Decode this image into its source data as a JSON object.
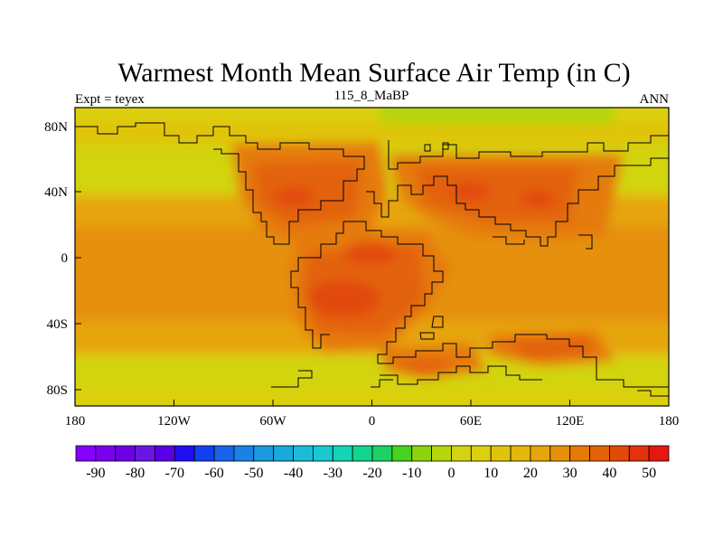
{
  "title": "Warmest Month Mean Surface Air Temp (in C)",
  "subtitle_left": "Expt = teyex",
  "subtitle_center": "115_8_MaBP",
  "subtitle_right": "ANN",
  "axes": {
    "lon_ticks": [
      "180",
      "120W",
      "60W",
      "0",
      "60E",
      "120E",
      "180"
    ],
    "lat_ticks": [
      "80N",
      "40N",
      "0",
      "40S",
      "80S"
    ]
  },
  "colorbar": {
    "colors": [
      "#8500ff",
      "#7c00f0",
      "#6f00e6",
      "#6a16e0",
      "#5a00e6",
      "#2010f0",
      "#1040f0",
      "#1a63ea",
      "#1a82e6",
      "#1b9ae0",
      "#19aadd",
      "#1abcd8",
      "#19c8d0",
      "#14d4b6",
      "#12d68c",
      "#1ed164",
      "#46d21e",
      "#8cd40f",
      "#b4d60d",
      "#d2d411",
      "#dcd00e",
      "#e0c40c",
      "#e3b80b",
      "#e6a50a",
      "#e69009",
      "#e57a08",
      "#e36208",
      "#e24a0a",
      "#e4320b",
      "#e5170f"
    ],
    "labels": [
      "-90",
      "-80",
      "-70",
      "-60",
      "-50",
      "-40",
      "-30",
      "-20",
      "-10",
      "0",
      "10",
      "20",
      "30",
      "40",
      "50"
    ],
    "range": [
      -95,
      55
    ]
  },
  "legend_colors": {
    "cold": "#b4d60d",
    "cool": "#d2d411",
    "mild": "#e0c40c",
    "warm": "#e6a50a",
    "warmer": "#e69009",
    "hot": "#e57a08",
    "hotter": "#e36208",
    "hottest": "#e24a0a"
  }
}
